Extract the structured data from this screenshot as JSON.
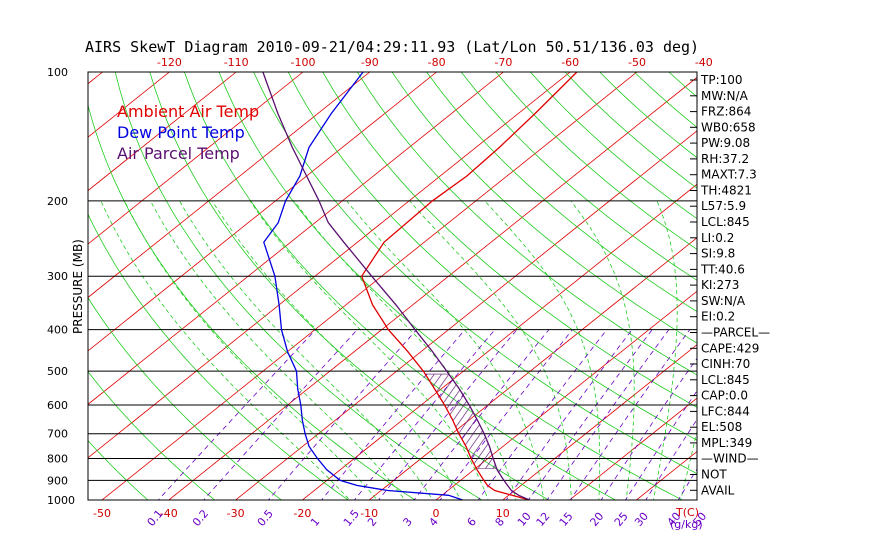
{
  "chart_data": {
    "type": "line",
    "title": "AIRS SkewT Diagram 2010-09-21/04:29:11.93 (Lat/Lon 50.51/136.03 deg)",
    "ylabel": "PRESSURE (MB)",
    "pressure_ticks": [
      100,
      200,
      300,
      400,
      500,
      600,
      700,
      800,
      900,
      1000
    ],
    "top_temp_ticks": [
      "-120",
      "-110",
      "-100",
      "-90",
      "-80",
      "-70",
      "-60",
      "-50",
      "-40"
    ],
    "bottom_temp_ticks": [
      "-50",
      "-40",
      "-30",
      "-20",
      "-10",
      "0",
      "10"
    ],
    "bottom_unit_label": "T(C)",
    "mixing_ratio_labels": [
      "0.1",
      "0.2",
      "0.5",
      "1",
      "1.5",
      "2",
      "3",
      "4",
      "6",
      "8",
      "10",
      "12",
      "15",
      "20",
      "25",
      "30",
      "40",
      "50"
    ],
    "mixing_ratio_unit": "(g/kg)",
    "legend": [
      {
        "label": "Ambient Air Temp",
        "color": "#e00000"
      },
      {
        "label": "Dew Point Temp",
        "color": "#0000e0"
      },
      {
        "label": "Air Parcel Temp",
        "color": "#5a1070"
      }
    ],
    "series": [
      {
        "name": "Ambient Air Temp",
        "color": "#e00000",
        "points": [
          [
            1000,
            14.0
          ],
          [
            975,
            10.5
          ],
          [
            950,
            7.0
          ],
          [
            925,
            5.0
          ],
          [
            900,
            3.5
          ],
          [
            850,
            0.5
          ],
          [
            800,
            -2.5
          ],
          [
            750,
            -5.5
          ],
          [
            700,
            -9.0
          ],
          [
            650,
            -12.5
          ],
          [
            600,
            -16.5
          ],
          [
            550,
            -21.0
          ],
          [
            500,
            -26.0
          ],
          [
            450,
            -32.0
          ],
          [
            400,
            -39.0
          ],
          [
            350,
            -46.0
          ],
          [
            300,
            -53.0
          ],
          [
            250,
            -56.0
          ],
          [
            200,
            -56.5
          ],
          [
            175,
            -56.0
          ],
          [
            150,
            -56.5
          ],
          [
            125,
            -57.5
          ],
          [
            100,
            -59.0
          ]
        ]
      },
      {
        "name": "Dew Point Temp",
        "color": "#0000e0",
        "points": [
          [
            1000,
            4.0
          ],
          [
            975,
            1.0
          ],
          [
            950,
            -9.0
          ],
          [
            925,
            -14.5
          ],
          [
            900,
            -18.0
          ],
          [
            850,
            -22.0
          ],
          [
            800,
            -25.5
          ],
          [
            750,
            -29.0
          ],
          [
            700,
            -32.0
          ],
          [
            650,
            -35.0
          ],
          [
            600,
            -38.0
          ],
          [
            550,
            -41.5
          ],
          [
            500,
            -45.0
          ],
          [
            450,
            -50.0
          ],
          [
            400,
            -55.0
          ],
          [
            350,
            -60.0
          ],
          [
            300,
            -66.0
          ],
          [
            250,
            -74.0
          ],
          [
            225,
            -75.5
          ],
          [
            200,
            -78.5
          ],
          [
            175,
            -81.0
          ],
          [
            150,
            -85.0
          ],
          [
            125,
            -88.0
          ],
          [
            100,
            -91.0
          ]
        ]
      },
      {
        "name": "Air Parcel Temp",
        "color": "#5a1070",
        "points": [
          [
            1000,
            14.0
          ],
          [
            975,
            11.5
          ],
          [
            950,
            9.5
          ],
          [
            925,
            8.0
          ],
          [
            900,
            6.5
          ],
          [
            850,
            3.5
          ],
          [
            800,
            0.8
          ],
          [
            750,
            -2.0
          ],
          [
            700,
            -5.2
          ],
          [
            650,
            -8.8
          ],
          [
            600,
            -12.8
          ],
          [
            550,
            -17.3
          ],
          [
            500,
            -22.5
          ],
          [
            450,
            -28.3
          ],
          [
            400,
            -35.0
          ],
          [
            350,
            -42.5
          ],
          [
            300,
            -51.5
          ],
          [
            250,
            -62.0
          ],
          [
            225,
            -68.0
          ],
          [
            200,
            -73.5
          ],
          [
            175,
            -80.0
          ],
          [
            150,
            -87.5
          ],
          [
            125,
            -96.0
          ],
          [
            100,
            -106.0
          ]
        ]
      }
    ],
    "cape_region": {
      "top_pressure": 508,
      "bottom_pressure": 844
    }
  },
  "stats": [
    "TP:100",
    "MW:N/A",
    "FRZ:864",
    "WB0:658",
    "PW:9.08",
    "RH:37.2",
    "MAXT:7.3",
    "TH:4821",
    "L57:5.9",
    "LCL:845",
    "LI:0.2",
    "SI:9.8",
    "TT:40.6",
    "KI:273",
    "SW:N/A",
    "EI:0.2",
    "—PARCEL—",
    "CAPE:429",
    "CINH:70",
    "LCL:845",
    "CAP:0.0",
    "LFC:844",
    "EL:508",
    "MPL:349",
    "—WIND—",
    "NOT",
    "AVAIL"
  ]
}
